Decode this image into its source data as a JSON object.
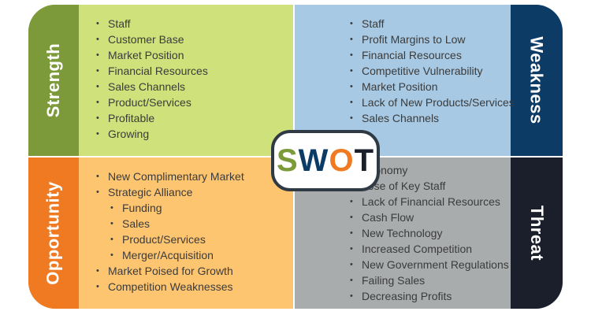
{
  "badge": {
    "letters": [
      {
        "char": "S",
        "color": "#7c9a39"
      },
      {
        "char": "W",
        "color": "#0c3b66"
      },
      {
        "char": "O",
        "color": "#f07a22"
      },
      {
        "char": "T",
        "color": "#1a1f2b"
      }
    ]
  },
  "strength": {
    "title": "Strength",
    "band_color": "#7c9a39",
    "fill_color": "#cfe17b",
    "items": [
      {
        "text": "Staff"
      },
      {
        "text": "Customer Base"
      },
      {
        "text": "Market Position"
      },
      {
        "text": "Financial Resources"
      },
      {
        "text": "Sales Channels"
      },
      {
        "text": "Product/Services"
      },
      {
        "text": "Profitable"
      },
      {
        "text": "Growing"
      }
    ]
  },
  "weakness": {
    "title": "Weakness",
    "band_color": "#0c3b66",
    "fill_color": "#a7c9e3",
    "items": [
      {
        "text": "Staff"
      },
      {
        "text": "Profit Margins to Low"
      },
      {
        "text": "Financial Resources"
      },
      {
        "text": "Competitive Vulnerability"
      },
      {
        "text": "Market Position"
      },
      {
        "text": "Lack of New Products/Services"
      },
      {
        "text": "Sales Channels"
      }
    ]
  },
  "opportunity": {
    "title": "Opportunity",
    "band_color": "#f07a22",
    "fill_color": "#fec571",
    "items": [
      {
        "text": "New Complimentary Market"
      },
      {
        "text": "Strategic Alliance"
      },
      {
        "text": "Funding",
        "sub": true
      },
      {
        "text": "Sales",
        "sub": true
      },
      {
        "text": "Product/Services",
        "sub": true
      },
      {
        "text": "Merger/Acquisition",
        "sub": true
      },
      {
        "text": "Market Poised for Growth"
      },
      {
        "text": "Competition Weaknesses"
      }
    ]
  },
  "threat": {
    "title": "Threat",
    "band_color": "#1a1f2b",
    "fill_color": "#a9acad",
    "items": [
      {
        "text": "Economy"
      },
      {
        "text": "Lose of Key Staff"
      },
      {
        "text": "Lack of Financial Resources"
      },
      {
        "text": "Cash Flow"
      },
      {
        "text": "New Technology"
      },
      {
        "text": "Increased Competition"
      },
      {
        "text": "New Government Regulations"
      },
      {
        "text": "Failing Sales"
      },
      {
        "text": "Decreasing Profits"
      }
    ]
  }
}
